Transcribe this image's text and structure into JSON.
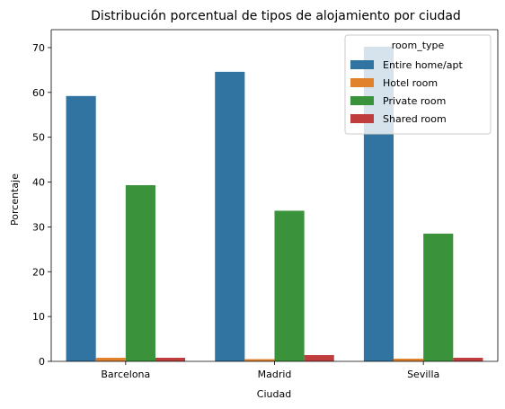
{
  "chart_data": {
    "type": "bar",
    "title": "Distribución porcentual de tipos de alojamiento por ciudad",
    "xlabel": "Ciudad",
    "ylabel": "Porcentaje",
    "categories": [
      "Barcelona",
      "Madrid",
      "Sevilla"
    ],
    "ylim": [
      0,
      74
    ],
    "yticks": [
      0,
      10,
      20,
      30,
      40,
      50,
      60,
      70
    ],
    "grid": false,
    "legend": {
      "title": "room_type",
      "placement": "top-right"
    },
    "series": [
      {
        "name": "Entire home/apt",
        "color": "#3274a1",
        "values": [
          59.2,
          64.6,
          70.2
        ]
      },
      {
        "name": "Hotel room",
        "color": "#e1812c",
        "values": [
          0.8,
          0.5,
          0.6
        ]
      },
      {
        "name": "Private room",
        "color": "#3a923a",
        "values": [
          39.3,
          33.6,
          28.5
        ]
      },
      {
        "name": "Shared room",
        "color": "#c03d3e",
        "values": [
          0.8,
          1.4,
          0.8
        ]
      }
    ]
  }
}
